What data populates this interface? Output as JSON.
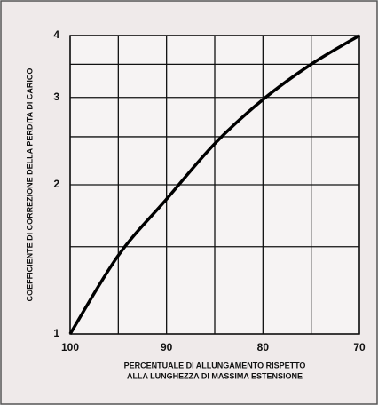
{
  "chart_data": {
    "type": "line",
    "y_label": "COEFFICIENTE DI CORREZIONE DELLA PERDITA DI CARICO",
    "x_label": [
      "PERCENTUALE DI ALLUNGAMENTO RISPETTO",
      "ALLA LUNGHEZZA DI MASSIMA ESTENSIONE"
    ],
    "x": [
      100,
      95,
      90,
      85,
      80,
      75,
      70
    ],
    "series": [
      {
        "color": "#000000",
        "values": [
          1,
          1.44,
          1.87,
          2.42,
          2.97,
          3.5,
          4
        ]
      }
    ],
    "xlim": [
      100,
      70
    ],
    "xticks": [
      100,
      90,
      80,
      70
    ],
    "xminor": [
      95,
      85,
      75
    ],
    "ylim": [
      1,
      4
    ],
    "yticks": [
      1,
      2,
      3,
      4
    ],
    "yminor": [
      1.5,
      2.5,
      3.5
    ],
    "ylog": true,
    "grid": true
  }
}
